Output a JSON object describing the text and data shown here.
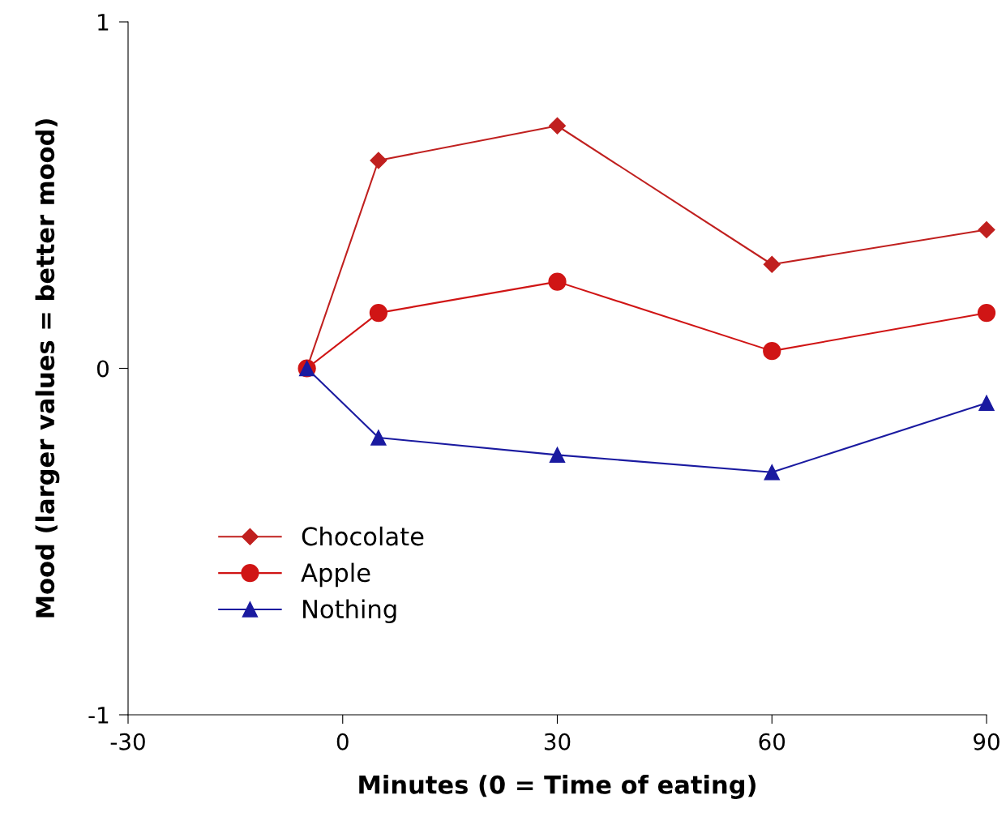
{
  "chart_data": {
    "type": "line",
    "xlabel": "Minutes (0 = Time of eating)",
    "ylabel": "Mood (larger values = better mood)",
    "x": [
      -5,
      5,
      30,
      60,
      90
    ],
    "series": [
      {
        "name": "Chocolate",
        "color": "#c0201f",
        "marker": "diamond",
        "values": [
          0,
          0.6,
          0.7,
          0.3,
          0.4
        ]
      },
      {
        "name": "Apple",
        "color": "#d01515",
        "marker": "circle",
        "values": [
          0,
          0.16,
          0.25,
          0.05,
          0.16
        ]
      },
      {
        "name": "Nothing",
        "color": "#1a1aa0",
        "marker": "triangle",
        "values": [
          0,
          -0.2,
          -0.25,
          -0.3,
          -0.1
        ]
      }
    ],
    "xlim": [
      -30,
      90
    ],
    "xticks": [
      -30,
      0,
      30,
      60,
      90
    ],
    "ylim": [
      -1,
      1
    ],
    "yticks": [
      -1,
      0,
      1
    ],
    "grid": false,
    "legend": "bottom left",
    "line_style": "solid"
  }
}
